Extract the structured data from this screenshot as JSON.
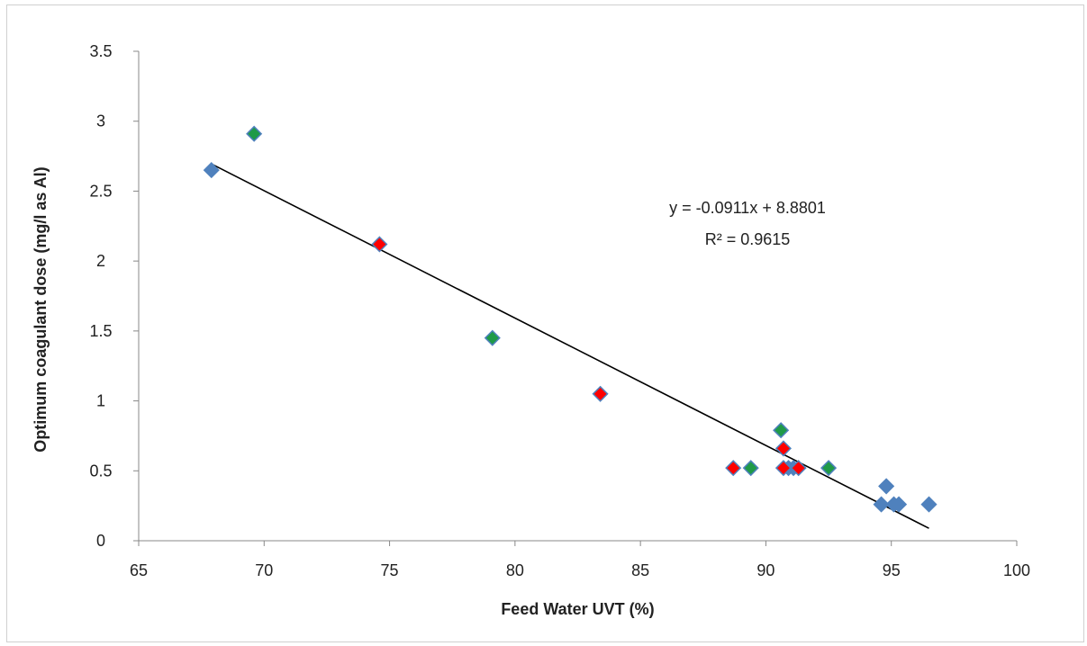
{
  "chart_data": {
    "type": "scatter",
    "xlabel": "Feed Water UVT (%)",
    "ylabel": "Optimum coagulant dose (mg/l as Al)",
    "xlim": [
      65,
      100
    ],
    "ylim": [
      0,
      3.5
    ],
    "x_ticks": [
      "65",
      "70",
      "75",
      "80",
      "85",
      "90",
      "95",
      "100"
    ],
    "y_ticks": [
      "0",
      "0.5",
      "1",
      "1.5",
      "2",
      "2.5",
      "3",
      "3.5"
    ],
    "grid": false,
    "legend": "none",
    "colors": {
      "blue": "#4f81bd",
      "green": "#1f9a48",
      "red": "#ff0000",
      "marker_edge": "#4f81bd",
      "trendline": "#000000",
      "axis": "#888888"
    },
    "series": [
      {
        "color": "blue",
        "points": [
          {
            "x": 67.9,
            "y": 2.65
          },
          {
            "x": 90.9,
            "y": 0.52
          },
          {
            "x": 91.1,
            "y": 0.52
          },
          {
            "x": 94.6,
            "y": 0.26
          },
          {
            "x": 94.8,
            "y": 0.39
          },
          {
            "x": 95.1,
            "y": 0.26
          },
          {
            "x": 95.3,
            "y": 0.26
          },
          {
            "x": 96.5,
            "y": 0.26
          }
        ]
      },
      {
        "color": "green",
        "points": [
          {
            "x": 69.6,
            "y": 2.91
          },
          {
            "x": 79.1,
            "y": 1.45
          },
          {
            "x": 89.4,
            "y": 0.52
          },
          {
            "x": 90.6,
            "y": 0.79
          },
          {
            "x": 92.5,
            "y": 0.52
          }
        ]
      },
      {
        "color": "red",
        "points": [
          {
            "x": 74.6,
            "y": 2.12
          },
          {
            "x": 83.4,
            "y": 1.05
          },
          {
            "x": 88.7,
            "y": 0.52
          },
          {
            "x": 90.7,
            "y": 0.66
          },
          {
            "x": 90.7,
            "y": 0.52
          },
          {
            "x": 91.3,
            "y": 0.52
          }
        ]
      }
    ],
    "trendline": {
      "type": "linear",
      "slope": -0.0911,
      "intercept": 8.8801,
      "x_range": [
        67.9,
        96.5
      ],
      "equation_text": "y = -0.0911x + 8.8801",
      "r2_text": "R² = 0.9615"
    }
  }
}
